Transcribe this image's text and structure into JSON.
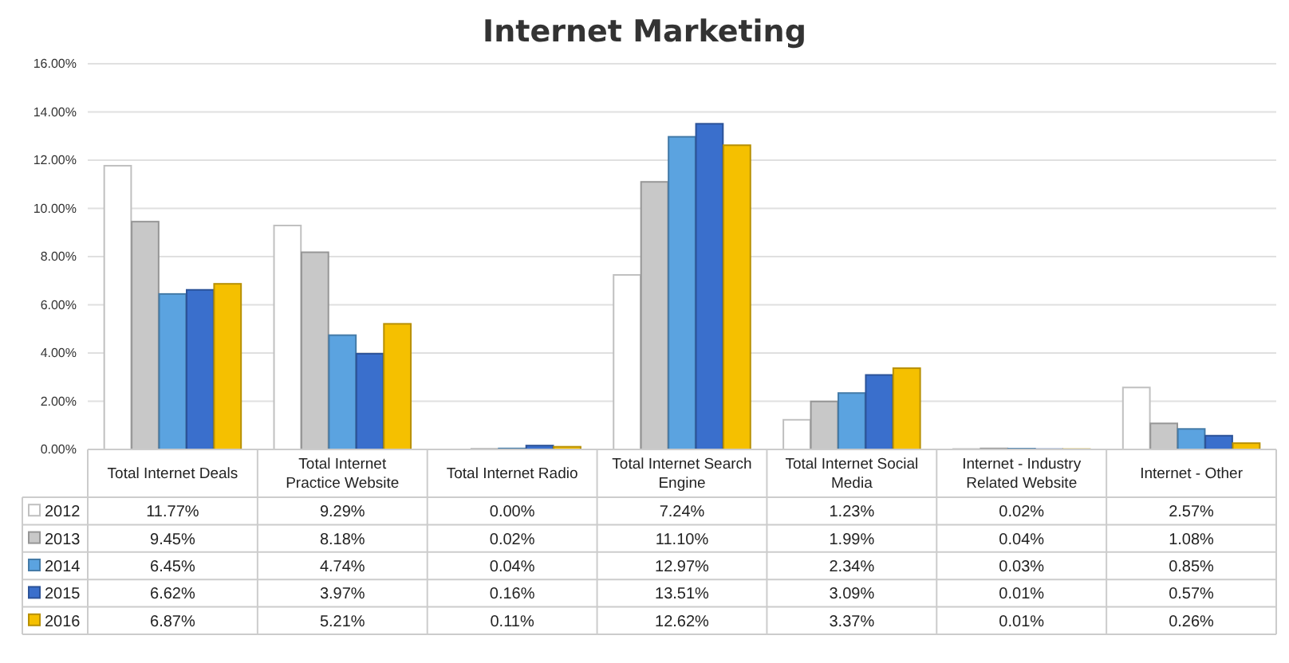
{
  "chart_data": {
    "type": "bar",
    "title": "Internet Marketing",
    "categories": [
      "Total Internet Deals",
      "Total Internet Practice Website",
      "Total Internet Radio",
      "Total Internet Search Engine",
      "Total Internet Social Media",
      "Internet - Industry Related Website",
      "Internet - Other"
    ],
    "series": [
      {
        "name": "2012",
        "color": "#ffffff",
        "values": [
          11.77,
          9.29,
          0.0,
          7.24,
          1.23,
          0.02,
          2.57
        ],
        "value_labels": [
          "11.77%",
          "9.29%",
          "0.00%",
          "7.24%",
          "1.23%",
          "0.02%",
          "2.57%"
        ]
      },
      {
        "name": "2013",
        "color": "#c8c8c8",
        "values": [
          9.45,
          8.18,
          0.02,
          11.1,
          1.99,
          0.04,
          1.08
        ],
        "value_labels": [
          "9.45%",
          "8.18%",
          "0.02%",
          "11.10%",
          "1.99%",
          "0.04%",
          "1.08%"
        ]
      },
      {
        "name": "2014",
        "color": "#5ba3e0",
        "values": [
          6.45,
          4.74,
          0.04,
          12.97,
          2.34,
          0.03,
          0.85
        ],
        "value_labels": [
          "6.45%",
          "4.74%",
          "0.04%",
          "12.97%",
          "2.34%",
          "0.03%",
          "0.85%"
        ]
      },
      {
        "name": "2015",
        "color": "#3a6fcc",
        "values": [
          6.62,
          3.97,
          0.16,
          13.51,
          3.09,
          0.01,
          0.57
        ],
        "value_labels": [
          "6.62%",
          "3.97%",
          "0.16%",
          "13.51%",
          "3.09%",
          "0.01%",
          "0.57%"
        ]
      },
      {
        "name": "2016",
        "color": "#f5c000",
        "values": [
          6.87,
          5.21,
          0.11,
          12.62,
          3.37,
          0.01,
          0.26
        ],
        "value_labels": [
          "6.87%",
          "5.21%",
          "0.11%",
          "12.62%",
          "3.37%",
          "0.01%",
          "0.26%"
        ]
      }
    ],
    "ylim": [
      0,
      16
    ],
    "yticks": [
      {
        "value": 0,
        "label": "0.00%"
      },
      {
        "value": 2,
        "label": "2.00%"
      },
      {
        "value": 4,
        "label": "4.00%"
      },
      {
        "value": 6,
        "label": "6.00%"
      },
      {
        "value": 8,
        "label": "8.00%"
      },
      {
        "value": 10,
        "label": "10.00%"
      },
      {
        "value": 12,
        "label": "12.00%"
      },
      {
        "value": 14,
        "label": "14.00%"
      },
      {
        "value": 16,
        "label": "16.00%"
      }
    ],
    "grid": "y",
    "legend": "bottom left"
  }
}
